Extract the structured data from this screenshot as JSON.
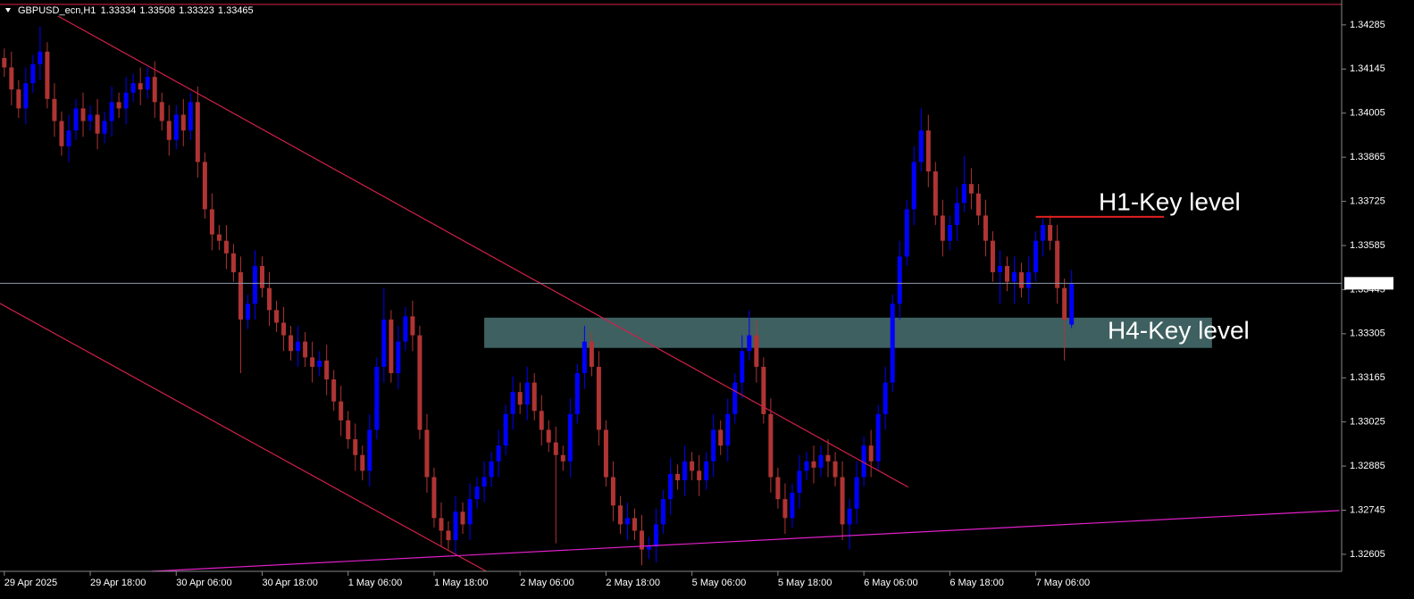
{
  "chart_data": {
    "type": "candlestick",
    "title": "GBPUSD_ecn,H1",
    "candles": [
      [
        1.3418,
        1.3421,
        1.3412,
        1.3415
      ],
      [
        1.3415,
        1.342,
        1.3403,
        1.3408
      ],
      [
        1.3408,
        1.3411,
        1.3399,
        1.3402
      ],
      [
        1.3402,
        1.3415,
        1.3397,
        1.341
      ],
      [
        1.341,
        1.3419,
        1.3407,
        1.3416
      ],
      [
        1.3416,
        1.3428,
        1.3411,
        1.342
      ],
      [
        1.342,
        1.3423,
        1.3402,
        1.3405
      ],
      [
        1.3405,
        1.341,
        1.3393,
        1.3398
      ],
      [
        1.3398,
        1.3401,
        1.3387,
        1.339
      ],
      [
        1.339,
        1.34,
        1.3385,
        1.3395
      ],
      [
        1.3395,
        1.3405,
        1.3392,
        1.3402
      ],
      [
        1.3402,
        1.3407,
        1.3393,
        1.3398
      ],
      [
        1.3398,
        1.3403,
        1.3395,
        1.34
      ],
      [
        1.34,
        1.3405,
        1.3389,
        1.3394
      ],
      [
        1.3394,
        1.3401,
        1.3391,
        1.3398
      ],
      [
        1.3398,
        1.3409,
        1.3393,
        1.3404
      ],
      [
        1.3404,
        1.3407,
        1.3399,
        1.3402
      ],
      [
        1.3402,
        1.3412,
        1.3397,
        1.3407
      ],
      [
        1.3407,
        1.3413,
        1.3404,
        1.341
      ],
      [
        1.341,
        1.3415,
        1.3403,
        1.3408
      ],
      [
        1.3408,
        1.3415,
        1.3405,
        1.3412
      ],
      [
        1.3412,
        1.3417,
        1.3399,
        1.3404
      ],
      [
        1.3404,
        1.3407,
        1.3395,
        1.3398
      ],
      [
        1.3398,
        1.3403,
        1.3387,
        1.3392
      ],
      [
        1.3392,
        1.3403,
        1.3389,
        1.34
      ],
      [
        1.34,
        1.3405,
        1.339,
        1.3395
      ],
      [
        1.3395,
        1.3407,
        1.3392,
        1.3404
      ],
      [
        1.3404,
        1.3409,
        1.338,
        1.3385
      ],
      [
        1.3385,
        1.3388,
        1.3367,
        1.337
      ],
      [
        1.337,
        1.3375,
        1.3357,
        1.3362
      ],
      [
        1.3362,
        1.3365,
        1.3357,
        1.336
      ],
      [
        1.336,
        1.3365,
        1.3351,
        1.3356
      ],
      [
        1.3356,
        1.3359,
        1.3347,
        1.335
      ],
      [
        1.335,
        1.3355,
        1.3318,
        1.3335
      ],
      [
        1.3335,
        1.3343,
        1.3332,
        1.334
      ],
      [
        1.334,
        1.3357,
        1.3335,
        1.3352
      ],
      [
        1.3352,
        1.3355,
        1.3342,
        1.3345
      ],
      [
        1.3345,
        1.335,
        1.3333,
        1.3338
      ],
      [
        1.3338,
        1.3341,
        1.3331,
        1.3334
      ],
      [
        1.3334,
        1.3339,
        1.3325,
        1.333
      ],
      [
        1.333,
        1.3333,
        1.3322,
        1.3325
      ],
      [
        1.3325,
        1.3333,
        1.332,
        1.3328
      ],
      [
        1.3328,
        1.3331,
        1.332,
        1.3323
      ],
      [
        1.3323,
        1.3328,
        1.3315,
        1.332
      ],
      [
        1.332,
        1.3325,
        1.3317,
        1.3322
      ],
      [
        1.3322,
        1.3327,
        1.3311,
        1.3316
      ],
      [
        1.3316,
        1.3319,
        1.3306,
        1.3309
      ],
      [
        1.3309,
        1.3314,
        1.3298,
        1.3303
      ],
      [
        1.3303,
        1.3306,
        1.3294,
        1.3297
      ],
      [
        1.3297,
        1.3302,
        1.3287,
        1.3292
      ],
      [
        1.3292,
        1.3295,
        1.3284,
        1.3287
      ],
      [
        1.3287,
        1.3305,
        1.3282,
        1.33
      ],
      [
        1.33,
        1.3323,
        1.3297,
        1.332
      ],
      [
        1.332,
        1.3345,
        1.3315,
        1.3335
      ],
      [
        1.3335,
        1.3338,
        1.3315,
        1.3318
      ],
      [
        1.3318,
        1.3333,
        1.3313,
        1.3328
      ],
      [
        1.3328,
        1.3339,
        1.3325,
        1.3336
      ],
      [
        1.3336,
        1.3341,
        1.3325,
        1.333
      ],
      [
        1.333,
        1.3333,
        1.3297,
        1.33
      ],
      [
        1.33,
        1.3305,
        1.328,
        1.3285
      ],
      [
        1.3285,
        1.3288,
        1.3269,
        1.3272
      ],
      [
        1.3272,
        1.3277,
        1.3263,
        1.3268
      ],
      [
        1.3268,
        1.3271,
        1.3262,
        1.3265
      ],
      [
        1.3265,
        1.3279,
        1.326,
        1.3274
      ],
      [
        1.3274,
        1.3277,
        1.3267,
        1.327
      ],
      [
        1.327,
        1.3283,
        1.3265,
        1.3278
      ],
      [
        1.3278,
        1.3285,
        1.3275,
        1.3282
      ],
      [
        1.3282,
        1.329,
        1.3277,
        1.3285
      ],
      [
        1.3285,
        1.3293,
        1.3282,
        1.329
      ],
      [
        1.329,
        1.33,
        1.3285,
        1.3295
      ],
      [
        1.3295,
        1.3308,
        1.3292,
        1.3305
      ],
      [
        1.3305,
        1.3317,
        1.33,
        1.3312
      ],
      [
        1.3312,
        1.3315,
        1.3305,
        1.3308
      ],
      [
        1.3308,
        1.332,
        1.3303,
        1.3315
      ],
      [
        1.3315,
        1.3318,
        1.3303,
        1.3306
      ],
      [
        1.3306,
        1.3311,
        1.3295,
        1.33
      ],
      [
        1.33,
        1.3303,
        1.3293,
        1.3296
      ],
      [
        1.3296,
        1.3301,
        1.3264,
        1.3292
      ],
      [
        1.3292,
        1.3295,
        1.3287,
        1.329
      ],
      [
        1.329,
        1.331,
        1.3285,
        1.3305
      ],
      [
        1.3305,
        1.3321,
        1.3302,
        1.3318
      ],
      [
        1.3318,
        1.3333,
        1.3313,
        1.3328
      ],
      [
        1.3328,
        1.3331,
        1.3317,
        1.332
      ],
      [
        1.332,
        1.3325,
        1.3295,
        1.33
      ],
      [
        1.33,
        1.3303,
        1.3282,
        1.3285
      ],
      [
        1.3285,
        1.329,
        1.3271,
        1.3276
      ],
      [
        1.3276,
        1.3279,
        1.3267,
        1.327
      ],
      [
        1.327,
        1.3277,
        1.3265,
        1.3272
      ],
      [
        1.3272,
        1.3275,
        1.3265,
        1.3268
      ],
      [
        1.3268,
        1.3273,
        1.3257,
        1.3262
      ],
      [
        1.3262,
        1.3266,
        1.3259,
        1.3263
      ],
      [
        1.3263,
        1.3275,
        1.3258,
        1.327
      ],
      [
        1.327,
        1.3281,
        1.3267,
        1.3278
      ],
      [
        1.3278,
        1.3291,
        1.3273,
        1.3286
      ],
      [
        1.3286,
        1.3289,
        1.3281,
        1.3284
      ],
      [
        1.3284,
        1.3295,
        1.3279,
        1.329
      ],
      [
        1.329,
        1.3293,
        1.3284,
        1.3287
      ],
      [
        1.3287,
        1.3292,
        1.3279,
        1.3284
      ],
      [
        1.3284,
        1.3293,
        1.3281,
        1.329
      ],
      [
        1.329,
        1.3305,
        1.3285,
        1.33
      ],
      [
        1.33,
        1.3303,
        1.3292,
        1.3295
      ],
      [
        1.3295,
        1.331,
        1.329,
        1.3305
      ],
      [
        1.3305,
        1.3318,
        1.3302,
        1.3315
      ],
      [
        1.3315,
        1.333,
        1.331,
        1.3325
      ],
      [
        1.3325,
        1.3338,
        1.3322,
        1.333
      ],
      [
        1.333,
        1.3335,
        1.3315,
        1.332
      ],
      [
        1.332,
        1.3323,
        1.3302,
        1.3305
      ],
      [
        1.3305,
        1.331,
        1.328,
        1.3285
      ],
      [
        1.3285,
        1.3288,
        1.3275,
        1.3278
      ],
      [
        1.3278,
        1.3283,
        1.3267,
        1.3272
      ],
      [
        1.3272,
        1.3283,
        1.3269,
        1.328
      ],
      [
        1.328,
        1.3292,
        1.3275,
        1.3287
      ],
      [
        1.3287,
        1.3293,
        1.3284,
        1.329
      ],
      [
        1.329,
        1.3295,
        1.3283,
        1.3288
      ],
      [
        1.3288,
        1.3295,
        1.3285,
        1.3292
      ],
      [
        1.3292,
        1.3297,
        1.3285,
        1.329
      ],
      [
        1.329,
        1.3293,
        1.3282,
        1.3285
      ],
      [
        1.3285,
        1.329,
        1.3265,
        1.327
      ],
      [
        1.327,
        1.3278,
        1.3262,
        1.3275
      ],
      [
        1.3275,
        1.329,
        1.327,
        1.3285
      ],
      [
        1.3285,
        1.3298,
        1.3282,
        1.3295
      ],
      [
        1.3295,
        1.33,
        1.3285,
        1.329
      ],
      [
        1.329,
        1.3308,
        1.3287,
        1.3305
      ],
      [
        1.3305,
        1.332,
        1.33,
        1.3315
      ],
      [
        1.3315,
        1.3343,
        1.3312,
        1.334
      ],
      [
        1.334,
        1.336,
        1.3335,
        1.3355
      ],
      [
        1.3355,
        1.3373,
        1.3352,
        1.337
      ],
      [
        1.337,
        1.339,
        1.3365,
        1.3385
      ],
      [
        1.3385,
        1.3402,
        1.3382,
        1.3395
      ],
      [
        1.3395,
        1.34,
        1.3377,
        1.3382
      ],
      [
        1.3382,
        1.3385,
        1.3365,
        1.3368
      ],
      [
        1.3368,
        1.3373,
        1.3355,
        1.336
      ],
      [
        1.336,
        1.3368,
        1.3357,
        1.3365
      ],
      [
        1.3365,
        1.3377,
        1.336,
        1.3372
      ],
      [
        1.3372,
        1.3387,
        1.3369,
        1.3378
      ],
      [
        1.3378,
        1.3383,
        1.337,
        1.3375
      ],
      [
        1.3375,
        1.3378,
        1.3365,
        1.3368
      ],
      [
        1.3368,
        1.3373,
        1.3355,
        1.336
      ],
      [
        1.336,
        1.3363,
        1.3347,
        1.335
      ],
      [
        1.335,
        1.3357,
        1.334,
        1.3352
      ],
      [
        1.3352,
        1.3355,
        1.3344,
        1.3347
      ],
      [
        1.3347,
        1.3355,
        1.334,
        1.335
      ],
      [
        1.335,
        1.3353,
        1.3342,
        1.3345
      ],
      [
        1.3345,
        1.3355,
        1.334,
        1.335
      ],
      [
        1.335,
        1.3363,
        1.3347,
        1.336
      ],
      [
        1.336,
        1.3367,
        1.3355,
        1.3365
      ],
      [
        1.3365,
        1.3368,
        1.3357,
        1.336
      ],
      [
        1.336,
        1.3365,
        1.334,
        1.3345
      ],
      [
        1.3345,
        1.3348,
        1.3322,
        1.3335
      ],
      [
        1.33334,
        1.33508,
        1.33323,
        1.33465
      ]
    ],
    "bull_color": "#0000ff",
    "bear_color": "#b03434",
    "xlim": [
      -0.6,
      186.7
    ],
    "xticks": [
      {
        "value": 0,
        "label": "29 Apr 2025"
      },
      {
        "value": 12,
        "label": "29 Apr 18:00"
      },
      {
        "value": 24,
        "label": "30 Apr 06:00"
      },
      {
        "value": 36,
        "label": "30 Apr 18:00"
      },
      {
        "value": 48,
        "label": "1 May 06:00"
      },
      {
        "value": 60,
        "label": "1 May 18:00"
      },
      {
        "value": 72,
        "label": "2 May 06:00"
      },
      {
        "value": 84,
        "label": "2 May 18:00"
      },
      {
        "value": 96,
        "label": "5 May 06:00"
      },
      {
        "value": 108,
        "label": "5 May 18:00"
      },
      {
        "value": 120,
        "label": "6 May 06:00"
      },
      {
        "value": 132,
        "label": "6 May 18:00"
      },
      {
        "value": 144,
        "label": "7 May 06:00"
      }
    ],
    "ylim": [
      1.32551,
      1.34364
    ],
    "yticks": [
      1.34285,
      1.34145,
      1.34005,
      1.33865,
      1.33725,
      1.33585,
      1.33445,
      1.33305,
      1.33165,
      1.33025,
      1.32885,
      1.32745,
      1.32605
    ],
    "lines": [
      {
        "x": [
          7.5,
          126.2
        ],
        "y": [
          1.34313,
          1.32818
        ],
        "color": "#d0204a"
      },
      {
        "x": [
          -0.6,
          67.3
        ],
        "y": [
          1.33401,
          1.32551
        ],
        "color": "#d0204a"
      },
      {
        "x": [
          20.6,
          186.4
        ],
        "y": [
          1.32551,
          1.32744
        ],
        "color": "#e020c8"
      },
      {
        "x": [
          -0.6,
          186.7
        ],
        "y": [
          1.3435,
          1.3435
        ],
        "color": "#c02040"
      }
    ],
    "key_levels": [
      {
        "label": "H1-Key level",
        "x": [
          144.0,
          161.9
        ],
        "y": [
          1.33676
        ],
        "color": "#e02020",
        "label_color": "#ffffff"
      },
      {
        "label": "H4-Key level",
        "x": [
          67.0,
          168.6
        ],
        "y": [
          1.3326,
          1.33356
        ],
        "color": "#3e6060",
        "label_color": "#d81b8c"
      }
    ]
  }
}
